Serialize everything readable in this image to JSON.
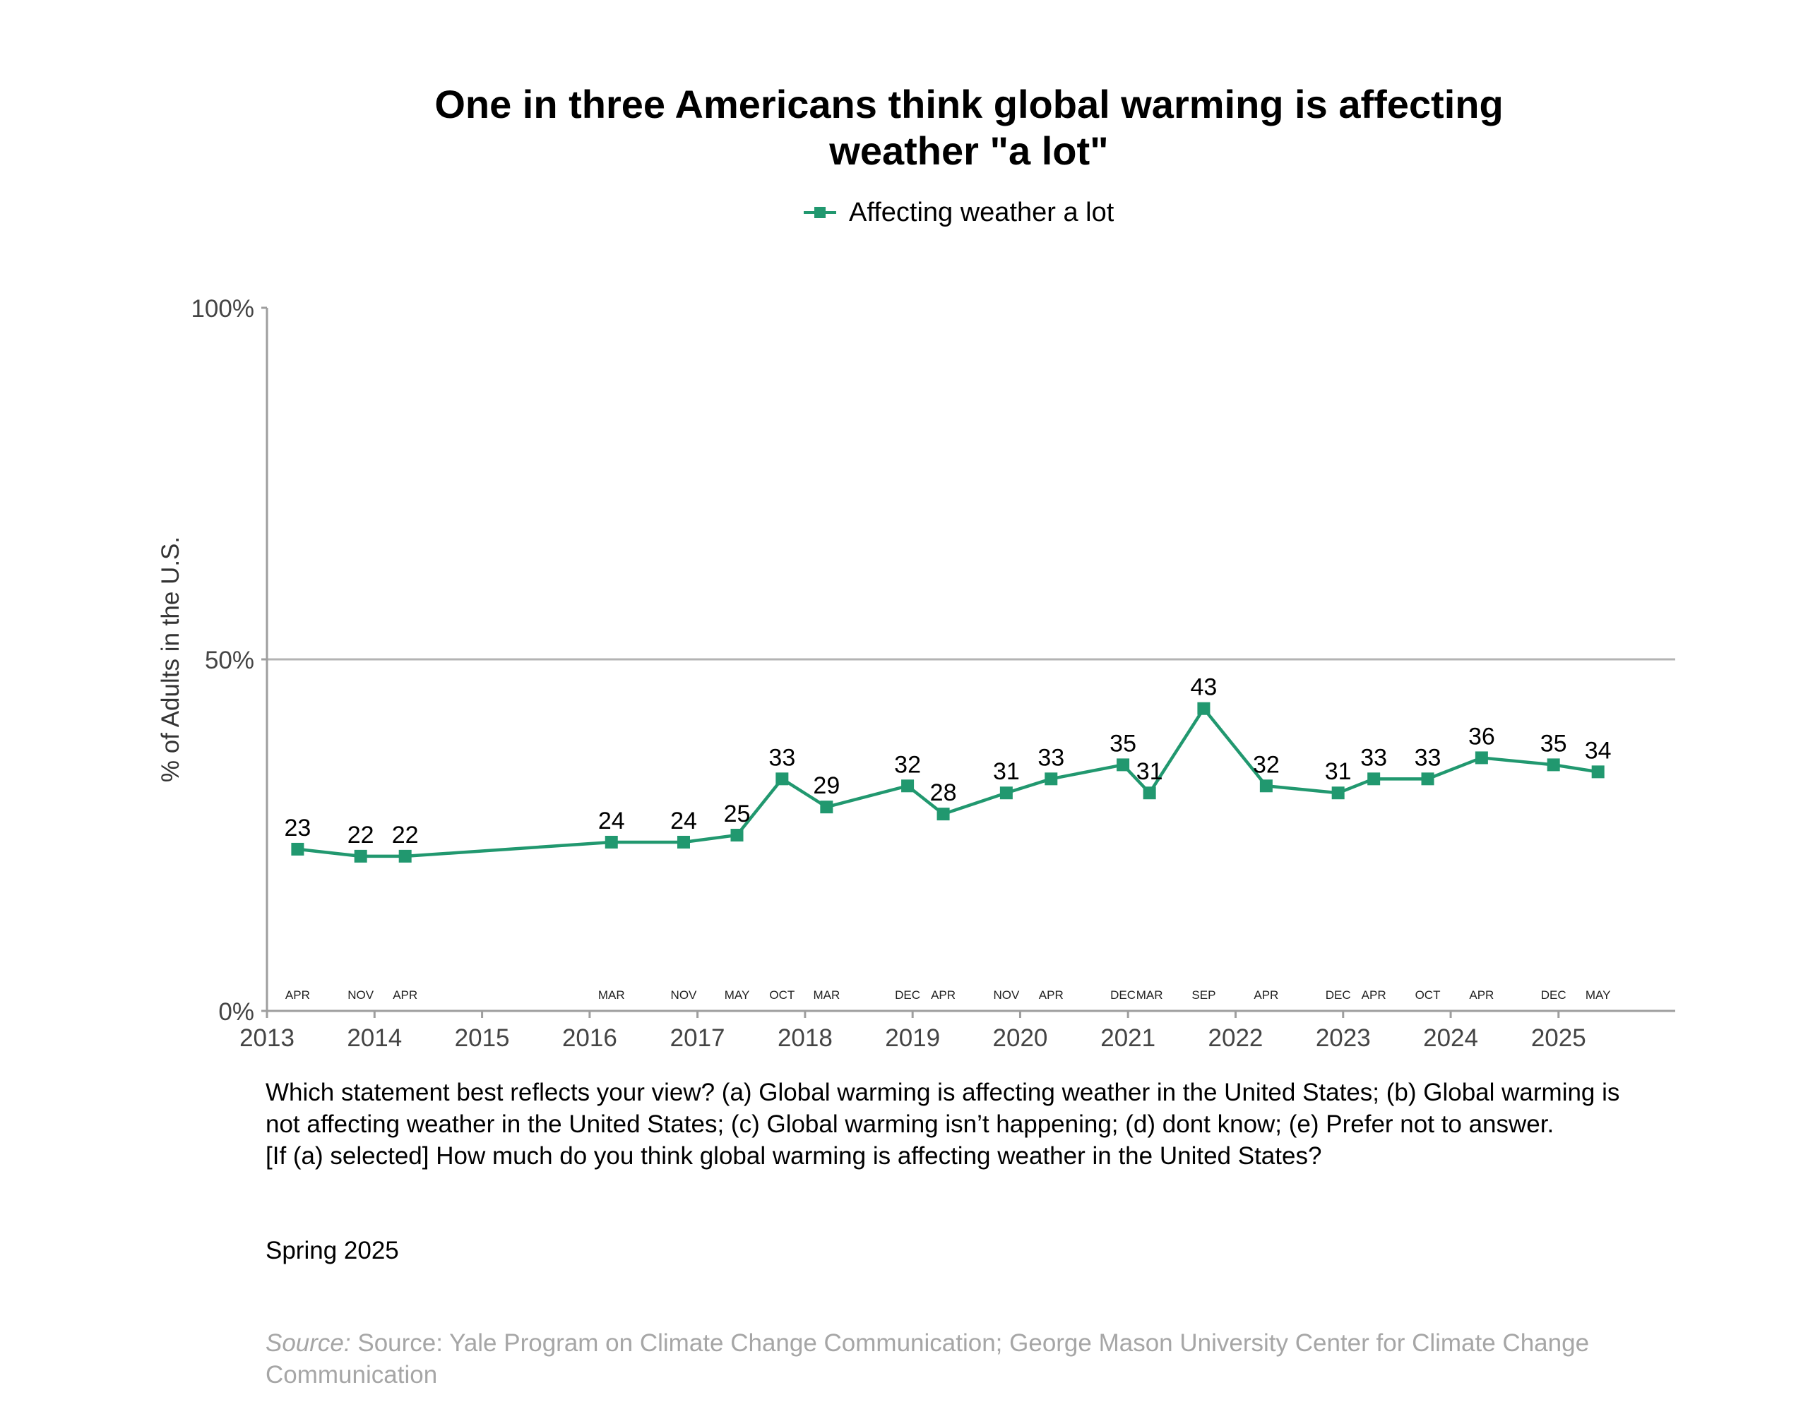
{
  "chart_data": {
    "type": "line",
    "title_lines": [
      "One in three Americans think global warming is affecting",
      "weather \"a lot\""
    ],
    "ylabel": "% of Adults in the U.S.",
    "ylim": [
      0,
      100
    ],
    "y_ticks": [
      {
        "value": 0,
        "label": "0%"
      },
      {
        "value": 50,
        "label": "50%"
      },
      {
        "value": 100,
        "label": "100%"
      }
    ],
    "x_ticks": [
      {
        "value": "2013-01-01",
        "label": "2013"
      },
      {
        "value": "2014-01-01",
        "label": "2014"
      },
      {
        "value": "2015-01-01",
        "label": "2015"
      },
      {
        "value": "2016-01-01",
        "label": "2016"
      },
      {
        "value": "2017-01-01",
        "label": "2017"
      },
      {
        "value": "2018-01-01",
        "label": "2018"
      },
      {
        "value": "2019-01-01",
        "label": "2019"
      },
      {
        "value": "2020-01-01",
        "label": "2020"
      },
      {
        "value": "2021-01-01",
        "label": "2021"
      },
      {
        "value": "2022-01-01",
        "label": "2022"
      },
      {
        "value": "2023-01-01",
        "label": "2023"
      },
      {
        "value": "2024-01-01",
        "label": "2024"
      },
      {
        "value": "2025-01-01",
        "label": "2025"
      }
    ],
    "xlim": [
      "2013-01-01",
      "2026-02-01"
    ],
    "grid": {
      "horizontal_at": [
        50
      ]
    },
    "legend_position": "top-center",
    "series": [
      {
        "name": "Affecting weather a lot",
        "color": "#21986f",
        "points": [
          {
            "date": "2013-04",
            "month": "APR",
            "value": 23
          },
          {
            "date": "2013-11",
            "month": "NOV",
            "value": 22
          },
          {
            "date": "2014-04",
            "month": "APR",
            "value": 22
          },
          {
            "date": "2016-03",
            "month": "MAR",
            "value": 24
          },
          {
            "date": "2016-11",
            "month": "NOV",
            "value": 24
          },
          {
            "date": "2017-05",
            "month": "MAY",
            "value": 25
          },
          {
            "date": "2017-10",
            "month": "OCT",
            "value": 33
          },
          {
            "date": "2018-03",
            "month": "MAR",
            "value": 29
          },
          {
            "date": "2018-12",
            "month": "DEC",
            "value": 32
          },
          {
            "date": "2019-04",
            "month": "APR",
            "value": 28
          },
          {
            "date": "2019-11",
            "month": "NOV",
            "value": 31
          },
          {
            "date": "2020-04",
            "month": "APR",
            "value": 33
          },
          {
            "date": "2020-12",
            "month": "DEC",
            "value": 35
          },
          {
            "date": "2021-03",
            "month": "MAR",
            "value": 31
          },
          {
            "date": "2021-09",
            "month": "SEP",
            "value": 43
          },
          {
            "date": "2022-04",
            "month": "APR",
            "value": 32
          },
          {
            "date": "2022-12",
            "month": "DEC",
            "value": 31
          },
          {
            "date": "2023-04",
            "month": "APR",
            "value": 33
          },
          {
            "date": "2023-10",
            "month": "OCT",
            "value": 33
          },
          {
            "date": "2024-04",
            "month": "APR",
            "value": 36
          },
          {
            "date": "2024-12",
            "month": "DEC",
            "value": 35
          },
          {
            "date": "2025-05",
            "month": "MAY",
            "value": 34
          }
        ]
      }
    ]
  },
  "question": {
    "line1": "Which statement best reflects your view? (a) Global warming is affecting weather in the United States; (b) Global warming is not affecting weather in the United States; (c) Global warming isn’t happening; (d) dont know; (e) Prefer not to answer.",
    "line2": "[If (a) selected] How much do you think global warming is affecting weather in the United States?"
  },
  "survey_date": "Spring 2025",
  "source": {
    "label": "Source:",
    "text": "Source: Yale Program on Climate Change Communication; George Mason University Center for Climate Change Communication"
  }
}
